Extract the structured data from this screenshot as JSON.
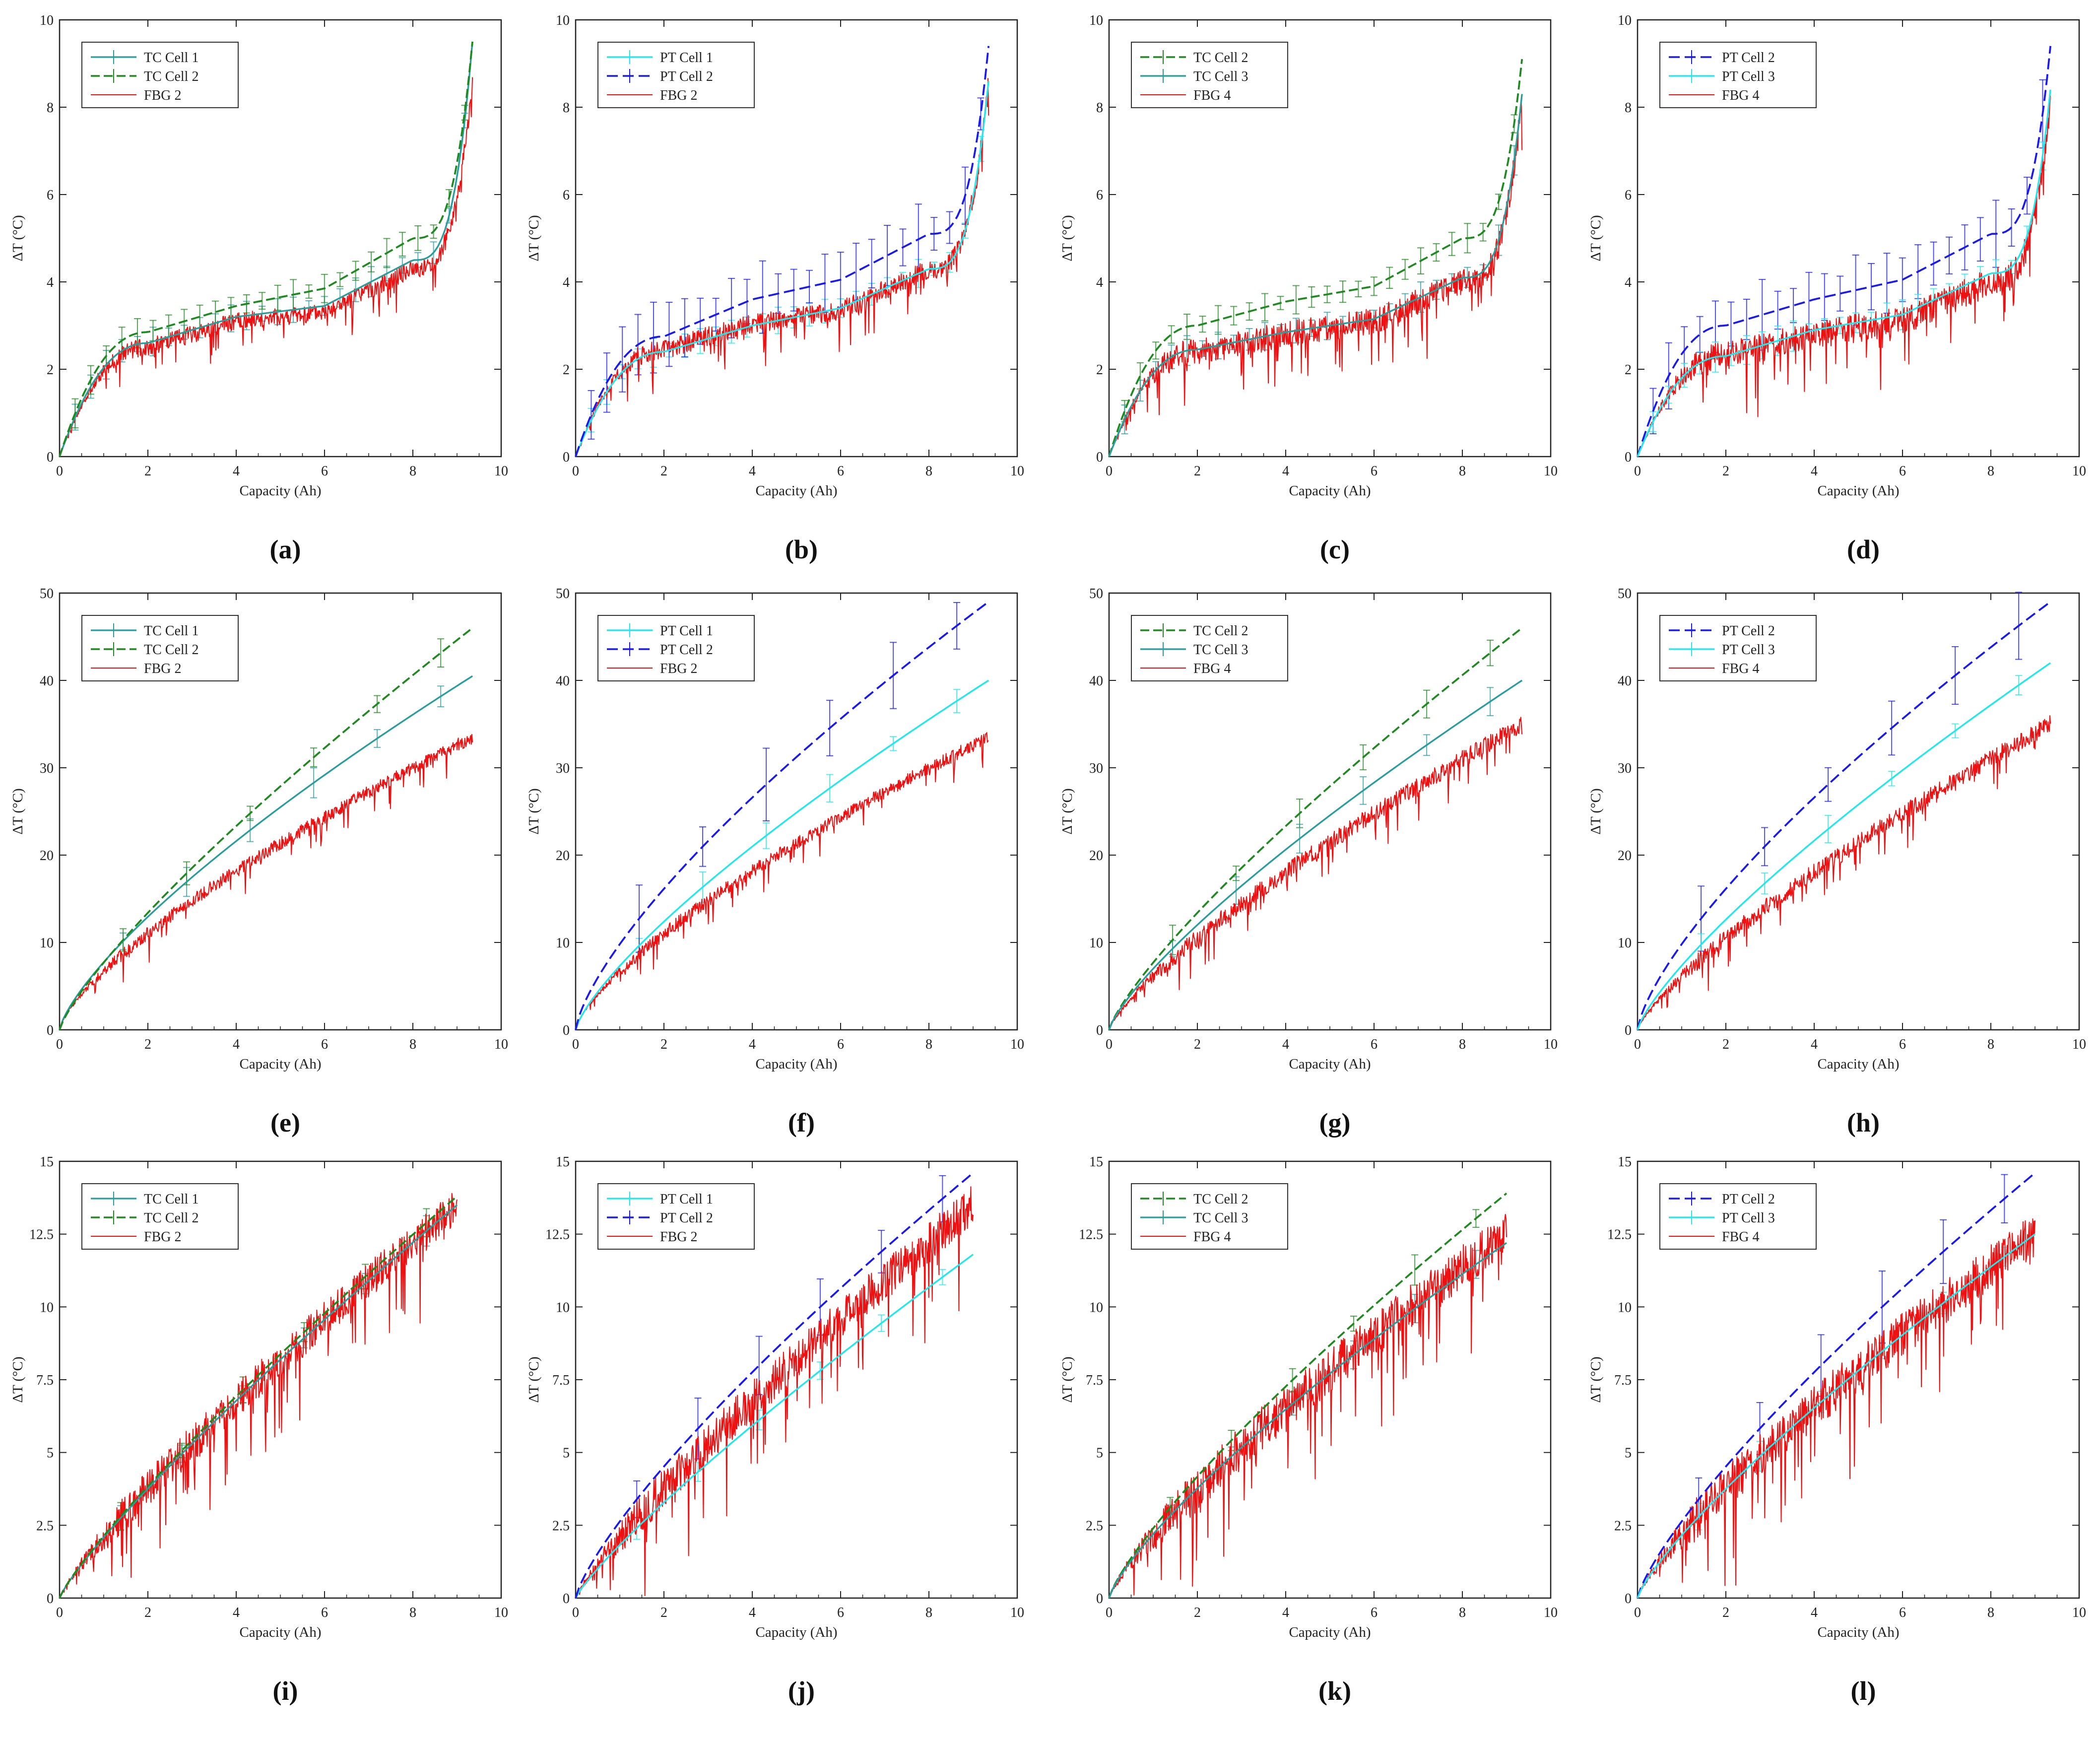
{
  "figure": {
    "axis_labels": {
      "x": "Capacity (Ah)",
      "y": "ΔT (°C)"
    },
    "colors": {
      "tc1": "#2a9d9f",
      "tc2": "#1f8a1f",
      "tc3": "#2a9d9f",
      "pt1": "#22e8ee",
      "pt2": "#1a1aee",
      "pt3": "#22e8ee",
      "fbg": "#ee1111"
    }
  },
  "chart_data": [
    {
      "id": "a",
      "panel_label": "(a)",
      "type": "line",
      "xlim": [
        0,
        10
      ],
      "ylim": [
        0,
        10
      ],
      "xticks": [
        0,
        2,
        4,
        6,
        8,
        10
      ],
      "yticks": [
        0,
        2,
        4,
        6,
        8,
        10
      ],
      "ytick_labels": [
        "0",
        "2",
        "4",
        "6",
        "8",
        "10"
      ],
      "xlabel": "Capacity (Ah)",
      "ylabel": "ΔT (°C)",
      "shape": "s",
      "xmax": 9.35,
      "noise": 0.8,
      "legend": "top-left",
      "series": [
        {
          "name": "TC Cell 1",
          "kind": "tc1",
          "values_at_x": [
            0,
            2,
            4,
            6,
            8,
            9.35
          ],
          "values": [
            0,
            2.6,
            3.2,
            3.45,
            4.5,
            9.5
          ]
        },
        {
          "name": "TC Cell 2",
          "kind": "tc2",
          "values_at_x": [
            0,
            2,
            4,
            6,
            8,
            9.35
          ],
          "values": [
            0,
            2.85,
            3.45,
            3.85,
            5.0,
            9.5
          ]
        },
        {
          "name": "FBG 2",
          "kind": "fbg",
          "values_at_x": [
            0,
            2,
            4,
            6,
            8,
            9.35
          ],
          "values": [
            0,
            2.5,
            3.1,
            3.3,
            4.3,
            8.6
          ]
        }
      ]
    },
    {
      "id": "b",
      "panel_label": "(b)",
      "type": "line",
      "xlim": [
        0,
        10
      ],
      "ylim": [
        0,
        10
      ],
      "xticks": [
        0,
        2,
        4,
        6,
        8,
        10
      ],
      "yticks": [
        0,
        2,
        4,
        6,
        8,
        10
      ],
      "ytick_labels": [
        "0",
        "2",
        "4",
        "6",
        "8",
        "10"
      ],
      "xlabel": "Capacity (Ah)",
      "ylabel": "ΔT (°C)",
      "shape": "s",
      "xmax": 9.35,
      "noise": 0.9,
      "legend": "top-left",
      "series": [
        {
          "name": "PT Cell 1",
          "kind": "pt1",
          "values_at_x": [
            0,
            2,
            4,
            6,
            8,
            9.35
          ],
          "values": [
            0,
            2.4,
            3.0,
            3.4,
            4.3,
            8.6
          ]
        },
        {
          "name": "PT Cell 2",
          "kind": "pt2",
          "values_at_x": [
            0,
            2,
            4,
            6,
            8,
            9.35
          ],
          "values": [
            0,
            2.75,
            3.6,
            4.05,
            5.1,
            9.4
          ]
        },
        {
          "name": "FBG 2",
          "kind": "fbg",
          "values_at_x": [
            0,
            2,
            4,
            6,
            8,
            9.35
          ],
          "values": [
            0,
            2.45,
            3.05,
            3.35,
            4.3,
            8.6
          ]
        }
      ]
    },
    {
      "id": "c",
      "panel_label": "(c)",
      "type": "line",
      "xlim": [
        0,
        10
      ],
      "ylim": [
        0,
        10
      ],
      "xticks": [
        0,
        2,
        4,
        6,
        8,
        10
      ],
      "yticks": [
        0,
        2,
        4,
        6,
        8,
        10
      ],
      "ytick_labels": [
        "0",
        "2",
        "4",
        "6",
        "8",
        "10"
      ],
      "xlabel": "Capacity (Ah)",
      "ylabel": "ΔT (°C)",
      "shape": "s",
      "xmax": 9.35,
      "noise": 1.2,
      "legend": "top-left",
      "series": [
        {
          "name": "TC Cell 2",
          "kind": "tc2",
          "values_at_x": [
            0,
            2,
            4,
            6,
            8,
            9.35
          ],
          "values": [
            0,
            3.0,
            3.55,
            3.9,
            5.0,
            9.1
          ]
        },
        {
          "name": "TC Cell 3",
          "kind": "tc3",
          "values_at_x": [
            0,
            2,
            4,
            6,
            8,
            9.35
          ],
          "values": [
            0,
            2.45,
            2.85,
            3.15,
            4.1,
            8.3
          ]
        },
        {
          "name": "FBG 4",
          "kind": "fbg",
          "values_at_x": [
            0,
            2,
            4,
            6,
            8,
            9.35
          ],
          "values": [
            0,
            2.4,
            2.8,
            3.1,
            4.0,
            8.2
          ]
        }
      ]
    },
    {
      "id": "d",
      "panel_label": "(d)",
      "type": "line",
      "xlim": [
        0,
        10
      ],
      "ylim": [
        0,
        10
      ],
      "xticks": [
        0,
        2,
        4,
        6,
        8,
        10
      ],
      "yticks": [
        0,
        2,
        4,
        6,
        8,
        10
      ],
      "ytick_labels": [
        "0",
        "2",
        "4",
        "6",
        "8",
        "10"
      ],
      "xlabel": "Capacity (Ah)",
      "ylabel": "ΔT (°C)",
      "shape": "s",
      "xmax": 9.35,
      "noise": 1.3,
      "legend": "top-left",
      "series": [
        {
          "name": "PT Cell 2",
          "kind": "pt2",
          "values_at_x": [
            0,
            2,
            4,
            6,
            8,
            9.35
          ],
          "values": [
            0,
            3.0,
            3.6,
            4.05,
            5.1,
            9.4
          ]
        },
        {
          "name": "PT Cell 3",
          "kind": "pt3",
          "values_at_x": [
            0,
            2,
            4,
            6,
            8,
            9.35
          ],
          "values": [
            0,
            2.3,
            2.9,
            3.25,
            4.2,
            8.4
          ]
        },
        {
          "name": "FBG 4",
          "kind": "fbg",
          "values_at_x": [
            0,
            2,
            4,
            6,
            8,
            9.35
          ],
          "values": [
            0,
            2.3,
            2.8,
            3.1,
            4.0,
            8.1
          ]
        }
      ]
    },
    {
      "id": "e",
      "panel_label": "(e)",
      "type": "line",
      "xlim": [
        0,
        10
      ],
      "ylim": [
        0,
        50
      ],
      "xticks": [
        0,
        2,
        4,
        6,
        8,
        10
      ],
      "yticks": [
        0,
        10,
        20,
        30,
        40,
        50
      ],
      "ytick_labels": [
        "0",
        "10",
        "20",
        "30",
        "40",
        "50"
      ],
      "xlabel": "Capacity (Ah)",
      "ylabel": "ΔT (°C)",
      "shape": "pow",
      "xmax": 9.35,
      "noise": 3.0,
      "legend": "top-left",
      "series": [
        {
          "name": "TC Cell 1",
          "kind": "tc1",
          "end": 40.5,
          "exp": 0.74
        },
        {
          "name": "TC Cell 2",
          "kind": "tc2",
          "end": 46.0,
          "exp": 0.8
        },
        {
          "name": "FBG 2",
          "kind": "fbg",
          "end": 33.5,
          "exp": 0.72
        }
      ]
    },
    {
      "id": "f",
      "panel_label": "(f)",
      "type": "line",
      "xlim": [
        0,
        10
      ],
      "ylim": [
        0,
        50
      ],
      "xticks": [
        0,
        2,
        4,
        6,
        8,
        10
      ],
      "yticks": [
        0,
        10,
        20,
        30,
        40,
        50
      ],
      "ytick_labels": [
        "0",
        "10",
        "20",
        "30",
        "40",
        "50"
      ],
      "xlabel": "Capacity (Ah)",
      "ylabel": "ΔT (°C)",
      "shape": "pow",
      "xmax": 9.35,
      "noise": 3.0,
      "legend": "top-left",
      "series": [
        {
          "name": "PT Cell 1",
          "kind": "pt1",
          "end": 40.0,
          "exp": 0.76
        },
        {
          "name": "PT Cell 2",
          "kind": "pt2",
          "end": 49.0,
          "exp": 0.72
        },
        {
          "name": "FBG 2",
          "kind": "fbg",
          "end": 33.5,
          "exp": 0.72
        }
      ]
    },
    {
      "id": "g",
      "panel_label": "(g)",
      "type": "line",
      "xlim": [
        0,
        10
      ],
      "ylim": [
        0,
        50
      ],
      "xticks": [
        0,
        2,
        4,
        6,
        8,
        10
      ],
      "yticks": [
        0,
        10,
        20,
        30,
        40,
        50
      ],
      "ytick_labels": [
        "0",
        "10",
        "20",
        "30",
        "40",
        "50"
      ],
      "xlabel": "Capacity (Ah)",
      "ylabel": "ΔT (°C)",
      "shape": "pow",
      "xmax": 9.35,
      "noise": 4.0,
      "legend": "top-left",
      "series": [
        {
          "name": "TC Cell 2",
          "kind": "tc2",
          "end": 46.0,
          "exp": 0.8
        },
        {
          "name": "TC Cell 3",
          "kind": "tc3",
          "end": 40.0,
          "exp": 0.78
        },
        {
          "name": "FBG 4",
          "kind": "fbg",
          "end": 35.0,
          "exp": 0.78
        }
      ]
    },
    {
      "id": "h",
      "panel_label": "(h)",
      "type": "line",
      "xlim": [
        0,
        10
      ],
      "ylim": [
        0,
        50
      ],
      "xticks": [
        0,
        2,
        4,
        6,
        8,
        10
      ],
      "yticks": [
        0,
        10,
        20,
        30,
        40,
        50
      ],
      "ytick_labels": [
        "0",
        "10",
        "20",
        "30",
        "40",
        "50"
      ],
      "xlabel": "Capacity (Ah)",
      "ylabel": "ΔT (°C)",
      "shape": "pow",
      "xmax": 9.35,
      "noise": 4.0,
      "legend": "top-left",
      "series": [
        {
          "name": "PT Cell 2",
          "kind": "pt2",
          "end": 49.0,
          "exp": 0.72
        },
        {
          "name": "PT Cell 3",
          "kind": "pt3",
          "end": 42.0,
          "exp": 0.78
        },
        {
          "name": "FBG 4",
          "kind": "fbg",
          "end": 35.0,
          "exp": 0.78
        }
      ]
    },
    {
      "id": "i",
      "panel_label": "(i)",
      "type": "line",
      "xlim": [
        0,
        10
      ],
      "ylim": [
        0,
        15
      ],
      "xticks": [
        0,
        2,
        4,
        6,
        8,
        10
      ],
      "yticks": [
        0,
        2.5,
        5,
        7.5,
        10,
        12.5,
        15
      ],
      "ytick_labels": [
        "0",
        "2.5",
        "5",
        "7.5",
        "10",
        "12.5",
        "15"
      ],
      "xlabel": "Capacity (Ah)",
      "ylabel": "ΔT (°C)",
      "shape": "pow",
      "xmax": 9.0,
      "noise": 2.5,
      "legend": "top-left",
      "series": [
        {
          "name": "TC Cell 1",
          "kind": "tc1",
          "end": 13.5,
          "exp": 0.85
        },
        {
          "name": "TC Cell 2",
          "kind": "tc2",
          "end": 13.8,
          "exp": 0.85
        },
        {
          "name": "FBG 2",
          "kind": "fbg",
          "end": 13.5,
          "exp": 0.85
        }
      ]
    },
    {
      "id": "j",
      "panel_label": "(j)",
      "type": "line",
      "xlim": [
        0,
        10
      ],
      "ylim": [
        0,
        15
      ],
      "xticks": [
        0,
        2,
        4,
        6,
        8,
        10
      ],
      "yticks": [
        0,
        2.5,
        5,
        7.5,
        10,
        12.5,
        15
      ],
      "ytick_labels": [
        "0",
        "2.5",
        "5",
        "7.5",
        "10",
        "12.5",
        "15"
      ],
      "xlabel": "Capacity (Ah)",
      "ylabel": "ΔT (°C)",
      "shape": "pow",
      "xmax": 9.0,
      "noise": 2.8,
      "legend": "top-left",
      "series": [
        {
          "name": "PT Cell 1",
          "kind": "pt1",
          "end": 11.8,
          "exp": 0.85
        },
        {
          "name": "PT Cell 2",
          "kind": "pt2",
          "end": 14.6,
          "exp": 0.78
        },
        {
          "name": "FBG 2",
          "kind": "fbg",
          "end": 13.5,
          "exp": 0.85
        }
      ]
    },
    {
      "id": "k",
      "panel_label": "(k)",
      "type": "line",
      "xlim": [
        0,
        10
      ],
      "ylim": [
        0,
        15
      ],
      "xticks": [
        0,
        2,
        4,
        6,
        8,
        10
      ],
      "yticks": [
        0,
        2.5,
        5,
        7.5,
        10,
        12.5,
        15
      ],
      "ytick_labels": [
        "0",
        "2.5",
        "5",
        "7.5",
        "10",
        "12.5",
        "15"
      ],
      "xlabel": "Capacity (Ah)",
      "ylabel": "ΔT (°C)",
      "shape": "pow",
      "xmax": 9.0,
      "noise": 3.0,
      "legend": "top-left",
      "series": [
        {
          "name": "TC Cell 2",
          "kind": "tc2",
          "end": 13.9,
          "exp": 0.8
        },
        {
          "name": "TC Cell 3",
          "kind": "tc3",
          "end": 12.2,
          "exp": 0.78
        },
        {
          "name": "FBG 4",
          "kind": "fbg",
          "end": 12.5,
          "exp": 0.8
        }
      ]
    },
    {
      "id": "l",
      "panel_label": "(l)",
      "type": "line",
      "xlim": [
        0,
        10
      ],
      "ylim": [
        0,
        15
      ],
      "xticks": [
        0,
        2,
        4,
        6,
        8,
        10
      ],
      "yticks": [
        0,
        2.5,
        5,
        7.5,
        10,
        12.5,
        15
      ],
      "ytick_labels": [
        "0",
        "2.5",
        "5",
        "7.5",
        "10",
        "12.5",
        "15"
      ],
      "xlabel": "Capacity (Ah)",
      "ylabel": "ΔT (°C)",
      "shape": "pow",
      "xmax": 9.0,
      "noise": 3.0,
      "legend": "top-left",
      "series": [
        {
          "name": "PT Cell 2",
          "kind": "pt2",
          "end": 14.6,
          "exp": 0.78
        },
        {
          "name": "PT Cell 3",
          "kind": "pt3",
          "end": 12.5,
          "exp": 0.8
        },
        {
          "name": "FBG 4",
          "kind": "fbg",
          "end": 12.5,
          "exp": 0.8
        }
      ]
    }
  ]
}
